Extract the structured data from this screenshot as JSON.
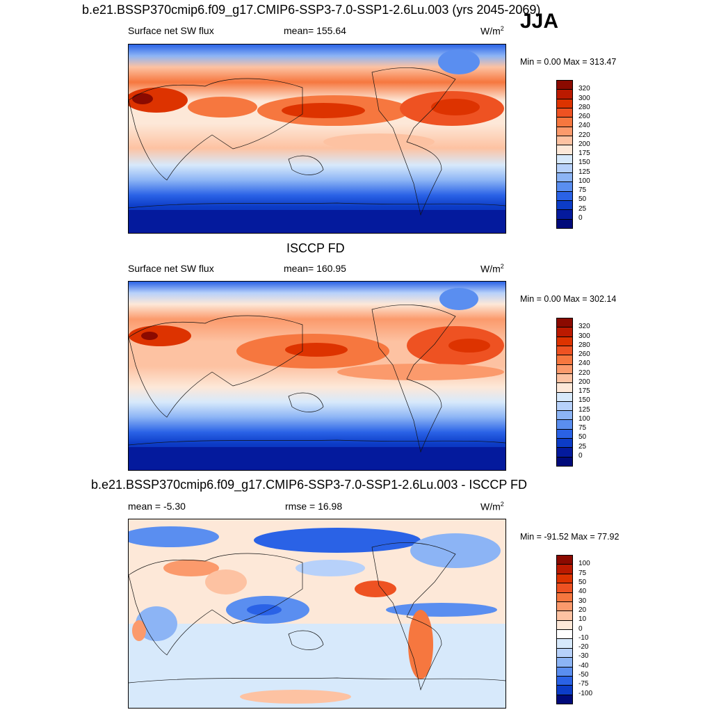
{
  "header": {
    "title": "b.e21.BSSP370cmip6.f09_g17.CMIP6-SSP3-7.0-SSP1-2.6Lu.003 (yrs 2045-2069)",
    "season": "JJA"
  },
  "panels": [
    {
      "id": "model",
      "left_label": "Surface net SW flux",
      "center_label": "mean= 155.64",
      "units": "W/m",
      "units_sup": "2",
      "minmax": "Min =   0.00 Max = 313.47",
      "levels": [
        "320",
        "300",
        "280",
        "260",
        "240",
        "220",
        "200",
        "175",
        "150",
        "125",
        "100",
        "75",
        "50",
        "25",
        "0"
      ],
      "colors": [
        "#8b0a00",
        "#bb1a00",
        "#dd3300",
        "#ee5222",
        "#f6773f",
        "#fb9a6c",
        "#fdc2a2",
        "#fde8d8",
        "#d7e9fb",
        "#b7d1fa",
        "#8cb4f5",
        "#5a8ef0",
        "#2a62e6",
        "#0c3cc7",
        "#041a9d",
        "#000a7a"
      ]
    },
    {
      "id": "obs",
      "title": "ISCCP FD",
      "left_label": "Surface net SW flux",
      "center_label": "mean= 160.95",
      "units": "W/m",
      "units_sup": "2",
      "minmax": "Min =   0.00 Max = 302.14",
      "levels": [
        "320",
        "300",
        "280",
        "260",
        "240",
        "220",
        "200",
        "175",
        "150",
        "125",
        "100",
        "75",
        "50",
        "25",
        "0"
      ],
      "colors": [
        "#8b0a00",
        "#bb1a00",
        "#dd3300",
        "#ee5222",
        "#f6773f",
        "#fb9a6c",
        "#fdc2a2",
        "#fde8d8",
        "#d7e9fb",
        "#b7d1fa",
        "#8cb4f5",
        "#5a8ef0",
        "#2a62e6",
        "#0c3cc7",
        "#041a9d",
        "#000a7a"
      ]
    },
    {
      "id": "diff",
      "title": "b.e21.BSSP370cmip6.f09_g17.CMIP6-SSP3-7.0-SSP1-2.6Lu.003 - ISCCP FD",
      "left_label": "mean =  -5.30",
      "center_label": "rmse =  16.98",
      "units": "W/m",
      "units_sup": "2",
      "minmax": "Min = -91.52 Max =  77.92",
      "levels": [
        "100",
        "75",
        "50",
        "40",
        "30",
        "20",
        "10",
        "0",
        "-10",
        "-20",
        "-30",
        "-40",
        "-50",
        "-75",
        "-100"
      ],
      "colors": [
        "#8b0a00",
        "#bb1a00",
        "#dd3300",
        "#ee5222",
        "#f6773f",
        "#fb9a6c",
        "#fdc2a2",
        "#fde8d8",
        "#ffffff",
        "#d7e9fb",
        "#b7d1fa",
        "#8cb4f5",
        "#5a8ef0",
        "#2a62e6",
        "#0c3cc7",
        "#000a7a"
      ]
    }
  ]
}
